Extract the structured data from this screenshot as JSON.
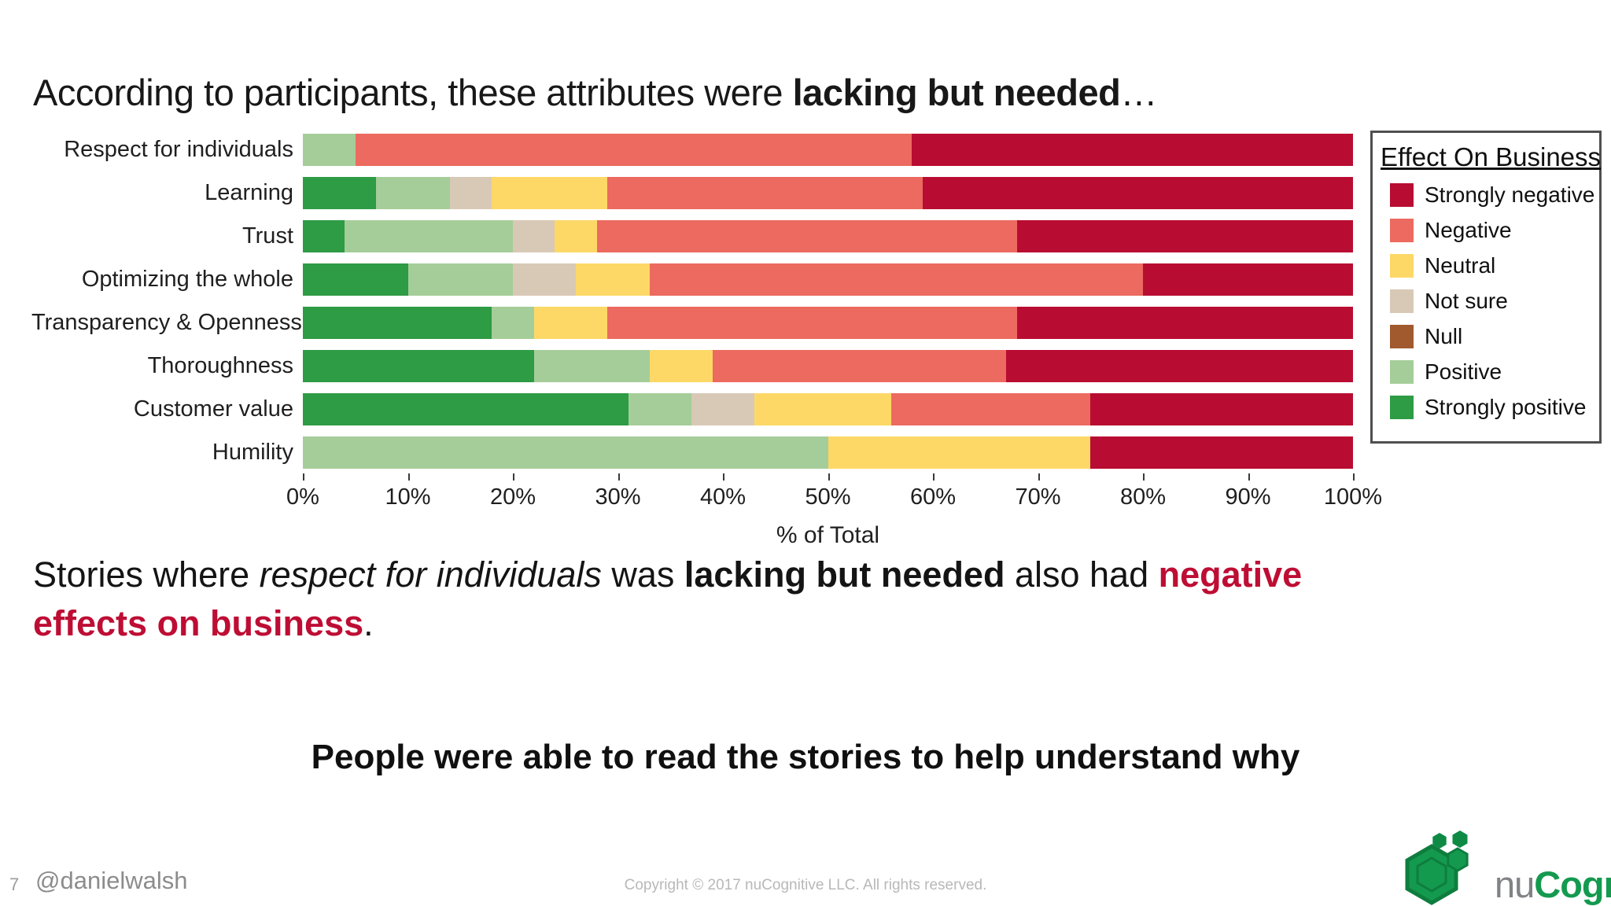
{
  "slide": {
    "title": {
      "regular": "According to participants, these attributes were ",
      "bold": "lacking but needed",
      "suffix": "…"
    },
    "body": {
      "part1": "Stories where ",
      "part2_italic": "respect for individuals",
      "part3": " was ",
      "part4_bold": "lacking but needed",
      "part5": " also had ",
      "red_line1": "negative",
      "red_line2": "effects on business",
      "period": "."
    },
    "callout": "People were able to read the stories to help understand why",
    "footer": {
      "page_number": "7",
      "handle": "@danielwalsh",
      "copyright": "Copyright © 2017 nuCognitive LLC. All rights reserved.",
      "logo_nu": "nu",
      "logo_cognitive": "Cognitive"
    }
  },
  "colors": {
    "accent_red": "#be0d34",
    "logo_green": "#149a4f",
    "logo_green_dark": "#0e7d3e",
    "logo_gray": "#808285"
  },
  "chart_data": {
    "type": "bar",
    "orientation": "horizontal",
    "stacked": true,
    "units": "percent of total per row",
    "title": "",
    "xlabel": "% of Total",
    "ylabel": "",
    "xlim": [
      0,
      100
    ],
    "x_ticks": [
      "0%",
      "10%",
      "20%",
      "30%",
      "40%",
      "50%",
      "60%",
      "70%",
      "80%",
      "90%",
      "100%"
    ],
    "grid": false,
    "legend": {
      "title": "Effect On Business",
      "position": "right",
      "entries": [
        {
          "label": "Strongly negative",
          "color": "#b90c32"
        },
        {
          "label": "Negative",
          "color": "#ec6a5f"
        },
        {
          "label": "Neutral",
          "color": "#fdd867"
        },
        {
          "label": "Not sure",
          "color": "#d8c9b6"
        },
        {
          "label": "Null",
          "color": "#a15a2e"
        },
        {
          "label": "Positive",
          "color": "#a5cd99"
        },
        {
          "label": "Strongly positive",
          "color": "#2e9b45"
        }
      ]
    },
    "series_colors": {
      "Strongly negative": "#b90c32",
      "Negative": "#ec6a5f",
      "Neutral": "#fdd867",
      "Not sure": "#d8c9b6",
      "Null": "#a15a2e",
      "Positive": "#a5cd99",
      "Strongly positive": "#2e9b45"
    },
    "stack_order": [
      "Strongly positive",
      "Positive",
      "Not sure",
      "Neutral",
      "Negative",
      "Strongly negative"
    ],
    "categories": [
      "Respect for individuals",
      "Learning",
      "Trust",
      "Optimizing the whole",
      "Transparency & Openness",
      "Thoroughness",
      "Customer value",
      "Humility"
    ],
    "rows": [
      {
        "category": "Respect for individuals",
        "segments": [
          {
            "series": "Positive",
            "value": 5
          },
          {
            "series": "Negative",
            "value": 53
          },
          {
            "series": "Strongly negative",
            "value": 42
          }
        ]
      },
      {
        "category": "Learning",
        "segments": [
          {
            "series": "Strongly positive",
            "value": 7
          },
          {
            "series": "Positive",
            "value": 7
          },
          {
            "series": "Not sure",
            "value": 4
          },
          {
            "series": "Neutral",
            "value": 11
          },
          {
            "series": "Negative",
            "value": 30
          },
          {
            "series": "Strongly negative",
            "value": 41
          }
        ]
      },
      {
        "category": "Trust",
        "segments": [
          {
            "series": "Strongly positive",
            "value": 4
          },
          {
            "series": "Positive",
            "value": 16
          },
          {
            "series": "Not sure",
            "value": 4
          },
          {
            "series": "Neutral",
            "value": 4
          },
          {
            "series": "Negative",
            "value": 40
          },
          {
            "series": "Strongly negative",
            "value": 32
          }
        ]
      },
      {
        "category": "Optimizing the whole",
        "segments": [
          {
            "series": "Strongly positive",
            "value": 10
          },
          {
            "series": "Positive",
            "value": 10
          },
          {
            "series": "Not sure",
            "value": 6
          },
          {
            "series": "Neutral",
            "value": 7
          },
          {
            "series": "Negative",
            "value": 47
          },
          {
            "series": "Strongly negative",
            "value": 20
          }
        ]
      },
      {
        "category": "Transparency & Openness",
        "segments": [
          {
            "series": "Strongly positive",
            "value": 18
          },
          {
            "series": "Positive",
            "value": 4
          },
          {
            "series": "Neutral",
            "value": 7
          },
          {
            "series": "Negative",
            "value": 39
          },
          {
            "series": "Strongly negative",
            "value": 32
          }
        ]
      },
      {
        "category": "Thoroughness",
        "segments": [
          {
            "series": "Strongly positive",
            "value": 22
          },
          {
            "series": "Positive",
            "value": 11
          },
          {
            "series": "Neutral",
            "value": 6
          },
          {
            "series": "Negative",
            "value": 28
          },
          {
            "series": "Strongly negative",
            "value": 33
          }
        ]
      },
      {
        "category": "Customer value",
        "segments": [
          {
            "series": "Strongly positive",
            "value": 31
          },
          {
            "series": "Positive",
            "value": 6
          },
          {
            "series": "Not sure",
            "value": 6
          },
          {
            "series": "Neutral",
            "value": 13
          },
          {
            "series": "Negative",
            "value": 19
          },
          {
            "series": "Strongly negative",
            "value": 25
          }
        ]
      },
      {
        "category": "Humility",
        "segments": [
          {
            "series": "Positive",
            "value": 50
          },
          {
            "series": "Neutral",
            "value": 25
          },
          {
            "series": "Strongly negative",
            "value": 25
          }
        ]
      }
    ]
  }
}
